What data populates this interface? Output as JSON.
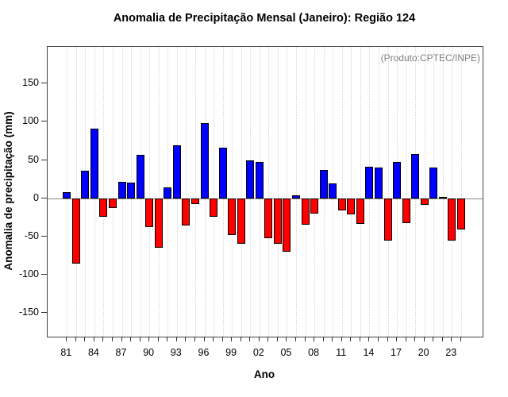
{
  "title": "Anomalia de Precipitação Mensal (Janeiro): Região 124",
  "annotation": {
    "text": "(Produto:CPTEC/INPE)",
    "color": "#7f7f7f"
  },
  "chart_data": {
    "type": "bar",
    "title": "Anomalia de Precipitação Mensal (Janeiro): Região 124",
    "xlabel": "Ano",
    "ylabel": "Anomalia de precipitação (mm)",
    "legend": "none",
    "grid": "vertical-dotted",
    "positive_color": "#0000FF",
    "negative_color": "#FF0000",
    "bar_border_color": "#000000",
    "ylim": [
      -181,
      198
    ],
    "xlim": [
      1978.9,
      2026.35
    ],
    "yticks": [
      -150,
      -100,
      -50,
      0,
      50,
      100,
      150
    ],
    "xtick_label_years": [
      1981,
      1984,
      1987,
      1990,
      1993,
      1996,
      1999,
      2002,
      2005,
      2008,
      2011,
      2014,
      2017,
      2020,
      2023
    ],
    "xtick_label_texts": [
      "81",
      "84",
      "87",
      "90",
      "93",
      "96",
      "99",
      "02",
      "05",
      "08",
      "11",
      "14",
      "17",
      "20",
      "23"
    ],
    "years": [
      1981,
      1982,
      1983,
      1984,
      1985,
      1986,
      1987,
      1988,
      1989,
      1990,
      1991,
      1992,
      1993,
      1994,
      1995,
      1996,
      1997,
      1998,
      1999,
      2000,
      2001,
      2002,
      2003,
      2004,
      2005,
      2006,
      2007,
      2008,
      2009,
      2010,
      2011,
      2012,
      2013,
      2014,
      2015,
      2016,
      2017,
      2018,
      2019,
      2020,
      2021,
      2022,
      2023,
      2024
    ],
    "values": [
      8,
      -86,
      36,
      91,
      -24,
      -13,
      22,
      20,
      57,
      -38,
      -65,
      14,
      69,
      -36,
      -8,
      98,
      -24,
      66,
      -48,
      -60,
      50,
      48,
      -52,
      -60,
      -70,
      4,
      -35,
      -20,
      37,
      19,
      -16,
      -21,
      -34,
      41,
      40,
      -55,
      48,
      -33,
      58,
      -9,
      40,
      2,
      -55,
      -41
    ]
  }
}
